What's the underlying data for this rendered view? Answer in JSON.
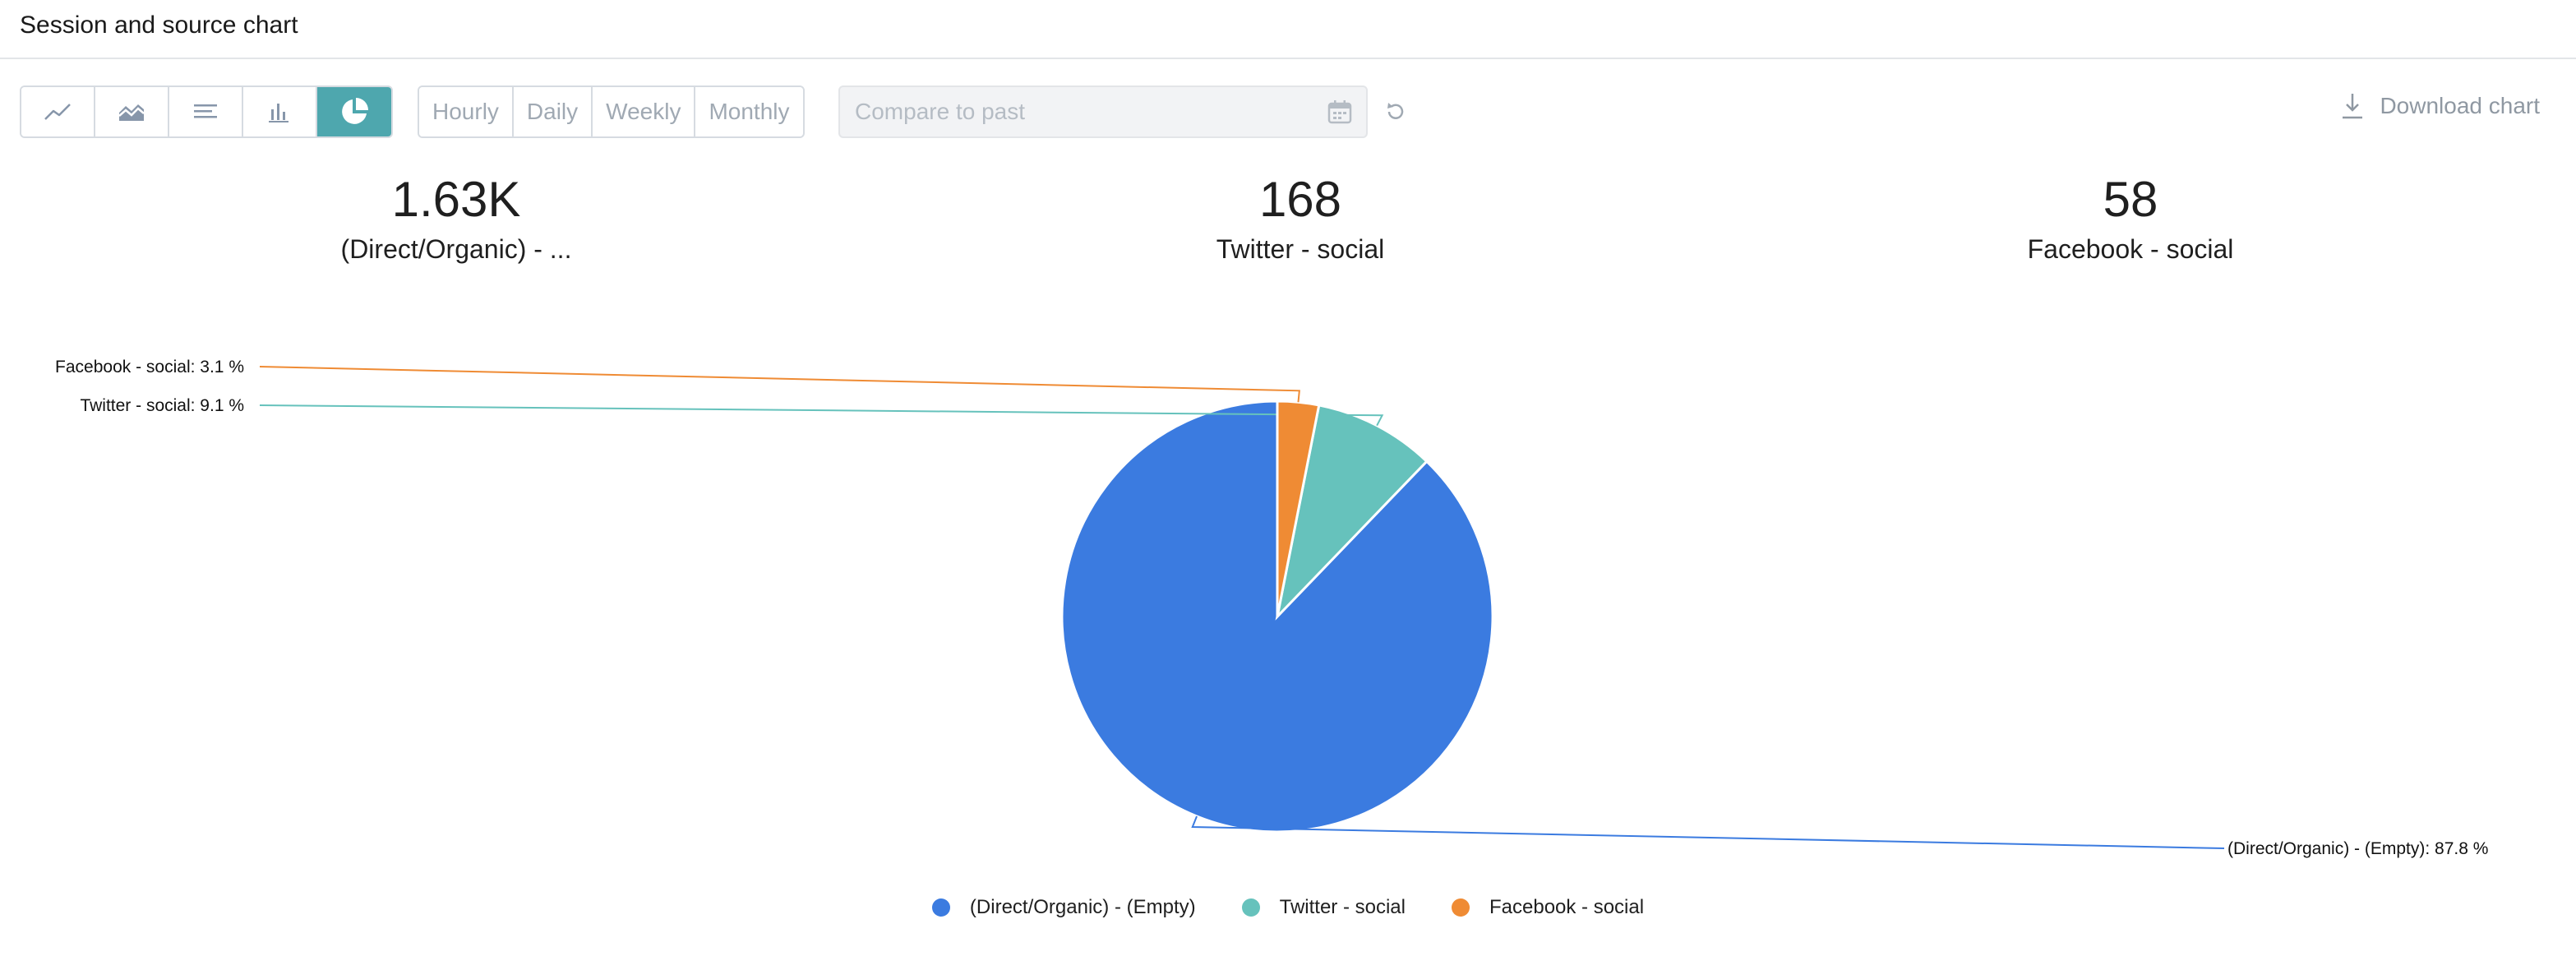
{
  "header": {
    "title": "Session and source chart"
  },
  "toolbar": {
    "chart_types": [
      {
        "icon": "line-chart-icon"
      },
      {
        "icon": "area-chart-icon"
      },
      {
        "icon": "list-chart-icon"
      },
      {
        "icon": "bar-chart-icon"
      },
      {
        "icon": "pie-chart-icon",
        "active": true
      }
    ],
    "intervals": [
      "Hourly",
      "Daily",
      "Weekly",
      "Monthly"
    ],
    "compare_placeholder": "Compare to past",
    "download_label": "Download chart"
  },
  "kpis": [
    {
      "value": "1.63K",
      "label": "(Direct/Organic) - ..."
    },
    {
      "value": "168",
      "label": "Twitter - social"
    },
    {
      "value": "58",
      "label": "Facebook - social"
    }
  ],
  "colors": {
    "accent": "#4ea7ae"
  },
  "chart_data": {
    "type": "pie",
    "series": [
      {
        "name": "(Direct/Organic) - (Empty)",
        "value": 87.8,
        "label": "(Direct/Organic) - (Empty): 87.8 %",
        "color": "#3b7be0"
      },
      {
        "name": "Twitter - social",
        "value": 9.1,
        "label": "Twitter - social: 9.1 %",
        "color": "#66c2bc"
      },
      {
        "name": "Facebook - social",
        "value": 3.1,
        "label": "Facebook - social: 3.1 %",
        "color": "#ef8b34"
      }
    ],
    "legend": "bottom"
  }
}
